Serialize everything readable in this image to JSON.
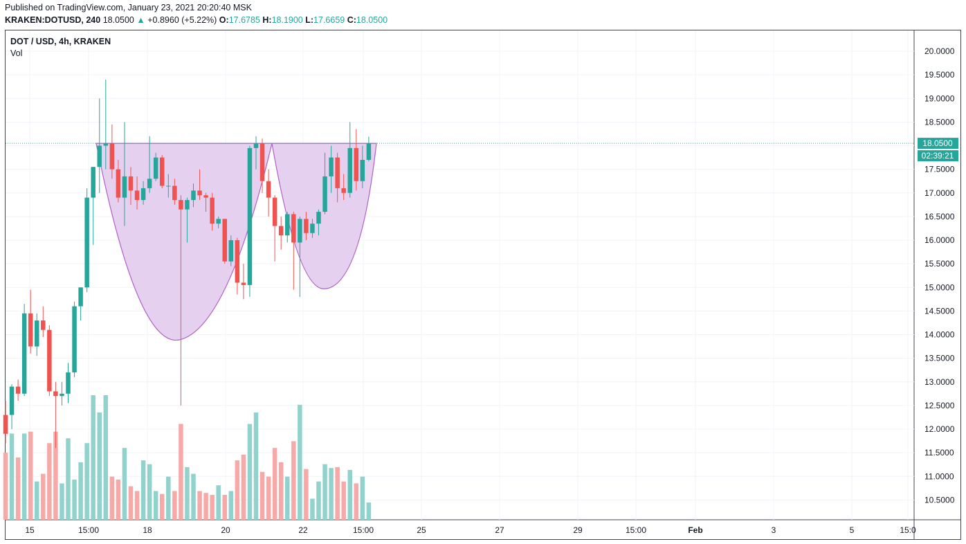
{
  "header": {
    "published": "Published on TradingView.com, January 23, 2021 20:20:40 MSK",
    "symbol": "KRAKEN:DOTUSD, 240",
    "last": "18.0500",
    "change_icon": "triangle-up-icon",
    "change": "+0.8960 (+5.22%)",
    "o_label": "O:",
    "o": "17.6785",
    "h_label": "H:",
    "h": "18.1900",
    "l_label": "L:",
    "l": "17.6659",
    "c_label": "C:",
    "c": "18.0500"
  },
  "legend": {
    "title": "DOT / USD, 4h, KRAKEN",
    "volume_label": "Vol"
  },
  "price_tag": {
    "price": "18.0500",
    "countdown": "02:39:21"
  },
  "colors": {
    "up": "#26a69a",
    "down": "#ef5350",
    "vol_up": "#92d2cc",
    "vol_down": "#f7a9a7",
    "pattern_fill": "#e6d0ef",
    "pattern_stroke": "#b05fc4",
    "grid": "#f0f3fa"
  },
  "chart_data": {
    "type": "candlestick",
    "title": "DOT / USD, 4h, KRAKEN",
    "y_ticks": [
      "20.0000",
      "19.5000",
      "19.0000",
      "18.5000",
      "18.0000",
      "17.5000",
      "17.0000",
      "16.5000",
      "16.0000",
      "15.5000",
      "15.0000",
      "14.5000",
      "14.0000",
      "13.5000",
      "13.0000",
      "12.5000",
      "12.0000",
      "11.5000",
      "11.0000",
      "10.5000"
    ],
    "ylim": [
      10.25,
      20.15
    ],
    "x_labels": [
      "15",
      "15:00",
      "18",
      "20",
      "22",
      "15:00",
      "25",
      "27",
      "29",
      "15:00",
      "Feb",
      "3",
      "5",
      "15:0"
    ],
    "annotations": [
      "cup and handle"
    ],
    "candles": [
      {
        "o": 12.3,
        "h": 12.6,
        "l": 11.7,
        "c": 11.9,
        "v": 0.7
      },
      {
        "o": 12.3,
        "h": 12.95,
        "l": 12.0,
        "c": 12.9,
        "v": 0.9
      },
      {
        "o": 12.9,
        "h": 13.05,
        "l": 12.6,
        "c": 12.75,
        "v": 0.65
      },
      {
        "o": 12.75,
        "h": 14.65,
        "l": 12.7,
        "c": 14.45,
        "v": 0.9
      },
      {
        "o": 14.45,
        "h": 14.95,
        "l": 13.6,
        "c": 13.75,
        "v": 0.92
      },
      {
        "o": 13.75,
        "h": 14.45,
        "l": 13.55,
        "c": 14.3,
        "v": 0.4
      },
      {
        "o": 14.3,
        "h": 14.6,
        "l": 13.95,
        "c": 14.1,
        "v": 0.48
      },
      {
        "o": 14.1,
        "h": 14.2,
        "l": 12.7,
        "c": 12.8,
        "v": 0.8
      },
      {
        "o": 12.8,
        "h": 13.0,
        "l": 11.6,
        "c": 12.7,
        "v": 0.92
      },
      {
        "o": 12.7,
        "h": 13.0,
        "l": 12.5,
        "c": 12.75,
        "v": 0.38
      },
      {
        "o": 12.75,
        "h": 13.4,
        "l": 12.55,
        "c": 13.2,
        "v": 0.85
      },
      {
        "o": 13.2,
        "h": 14.7,
        "l": 13.1,
        "c": 14.6,
        "v": 0.42
      },
      {
        "o": 14.6,
        "h": 15.0,
        "l": 14.3,
        "c": 15.0,
        "v": 0.6
      },
      {
        "o": 15.0,
        "h": 17.1,
        "l": 14.9,
        "c": 16.9,
        "v": 0.8
      },
      {
        "o": 16.9,
        "h": 17.55,
        "l": 15.9,
        "c": 17.55,
        "v": 1.3
      },
      {
        "o": 17.55,
        "h": 19.0,
        "l": 17.0,
        "c": 18.0,
        "v": 1.12
      },
      {
        "o": 18.0,
        "h": 19.4,
        "l": 17.5,
        "c": 18.05,
        "v": 1.3
      },
      {
        "o": 18.05,
        "h": 18.45,
        "l": 17.3,
        "c": 17.5,
        "v": 0.45
      },
      {
        "o": 17.5,
        "h": 17.7,
        "l": 16.8,
        "c": 16.9,
        "v": 0.42
      },
      {
        "o": 16.9,
        "h": 18.5,
        "l": 16.3,
        "c": 17.35,
        "v": 0.75
      },
      {
        "o": 17.35,
        "h": 17.55,
        "l": 16.75,
        "c": 17.05,
        "v": 0.35
      },
      {
        "o": 17.05,
        "h": 17.35,
        "l": 16.65,
        "c": 16.85,
        "v": 0.3
      },
      {
        "o": 16.85,
        "h": 17.25,
        "l": 16.75,
        "c": 17.1,
        "v": 0.62
      },
      {
        "o": 17.1,
        "h": 18.2,
        "l": 17.0,
        "c": 17.3,
        "v": 0.58
      },
      {
        "o": 17.3,
        "h": 17.85,
        "l": 17.25,
        "c": 17.75,
        "v": 0.3
      },
      {
        "o": 17.75,
        "h": 17.8,
        "l": 17.1,
        "c": 17.15,
        "v": 0.27
      },
      {
        "o": 17.15,
        "h": 17.4,
        "l": 16.9,
        "c": 17.15,
        "v": 0.45
      },
      {
        "o": 17.15,
        "h": 17.3,
        "l": 16.75,
        "c": 16.85,
        "v": 0.3
      },
      {
        "o": 16.85,
        "h": 16.95,
        "l": 12.5,
        "c": 16.65,
        "v": 1.0
      },
      {
        "o": 16.65,
        "h": 16.9,
        "l": 15.95,
        "c": 16.85,
        "v": 0.55
      },
      {
        "o": 16.85,
        "h": 17.2,
        "l": 16.7,
        "c": 17.05,
        "v": 0.48
      },
      {
        "o": 17.05,
        "h": 17.5,
        "l": 16.85,
        "c": 16.95,
        "v": 0.3
      },
      {
        "o": 16.95,
        "h": 17.0,
        "l": 16.6,
        "c": 16.9,
        "v": 0.28
      },
      {
        "o": 16.9,
        "h": 17.0,
        "l": 16.2,
        "c": 16.35,
        "v": 0.26
      },
      {
        "o": 16.35,
        "h": 16.5,
        "l": 16.25,
        "c": 16.45,
        "v": 0.36
      },
      {
        "o": 16.45,
        "h": 16.45,
        "l": 15.5,
        "c": 15.55,
        "v": 0.26
      },
      {
        "o": 15.55,
        "h": 16.1,
        "l": 15.45,
        "c": 16.0,
        "v": 0.3
      },
      {
        "o": 16.0,
        "h": 16.05,
        "l": 14.85,
        "c": 15.1,
        "v": 0.62
      },
      {
        "o": 15.1,
        "h": 15.5,
        "l": 14.75,
        "c": 15.05,
        "v": 0.68
      },
      {
        "o": 15.05,
        "h": 18.0,
        "l": 14.8,
        "c": 17.95,
        "v": 1.0
      },
      {
        "o": 17.95,
        "h": 18.2,
        "l": 17.5,
        "c": 18.05,
        "v": 1.12
      },
      {
        "o": 18.05,
        "h": 18.15,
        "l": 17.0,
        "c": 17.25,
        "v": 0.5
      },
      {
        "o": 17.25,
        "h": 17.5,
        "l": 16.5,
        "c": 16.9,
        "v": 0.45
      },
      {
        "o": 16.9,
        "h": 16.95,
        "l": 15.55,
        "c": 16.3,
        "v": 0.75
      },
      {
        "o": 16.3,
        "h": 16.5,
        "l": 15.8,
        "c": 16.1,
        "v": 0.6
      },
      {
        "o": 16.1,
        "h": 16.6,
        "l": 15.95,
        "c": 16.55,
        "v": 0.45
      },
      {
        "o": 16.55,
        "h": 16.6,
        "l": 14.95,
        "c": 15.95,
        "v": 0.82
      },
      {
        "o": 15.95,
        "h": 16.5,
        "l": 14.8,
        "c": 16.45,
        "v": 1.2
      },
      {
        "o": 16.45,
        "h": 16.6,
        "l": 16.0,
        "c": 16.15,
        "v": 0.53
      },
      {
        "o": 16.15,
        "h": 16.45,
        "l": 16.05,
        "c": 16.35,
        "v": 0.22
      },
      {
        "o": 16.35,
        "h": 16.65,
        "l": 16.1,
        "c": 16.6,
        "v": 0.4
      },
      {
        "o": 16.6,
        "h": 17.85,
        "l": 16.55,
        "c": 17.35,
        "v": 0.58
      },
      {
        "o": 17.35,
        "h": 18.0,
        "l": 17.0,
        "c": 17.75,
        "v": 0.54
      },
      {
        "o": 17.75,
        "h": 17.85,
        "l": 16.8,
        "c": 17.1,
        "v": 0.55
      },
      {
        "o": 17.1,
        "h": 17.4,
        "l": 16.85,
        "c": 17.0,
        "v": 0.4
      },
      {
        "o": 17.0,
        "h": 18.5,
        "l": 16.9,
        "c": 17.95,
        "v": 0.52
      },
      {
        "o": 17.95,
        "h": 18.35,
        "l": 17.05,
        "c": 17.25,
        "v": 0.38
      },
      {
        "o": 17.25,
        "h": 18.0,
        "l": 17.1,
        "c": 17.7,
        "v": 0.45
      },
      {
        "o": 17.7,
        "h": 18.19,
        "l": 17.67,
        "c": 18.05,
        "v": 0.18
      }
    ]
  }
}
